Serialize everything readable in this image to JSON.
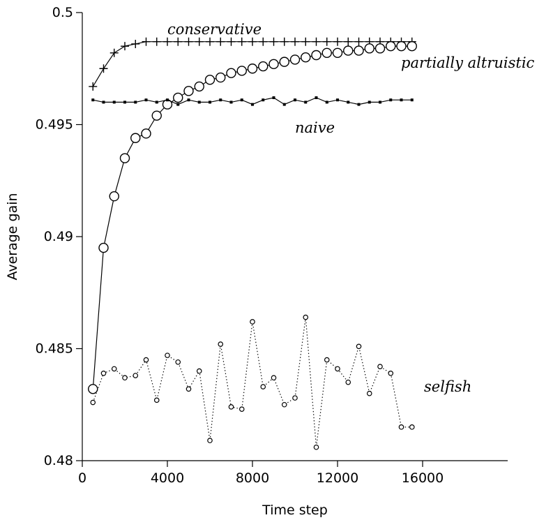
{
  "chart_data": {
    "type": "line",
    "xlabel": "Time step",
    "ylabel": "Average gain",
    "xlim": [
      0,
      20000
    ],
    "ylim": [
      0.48,
      0.5
    ],
    "x_ticks": [
      0,
      4000,
      8000,
      12000,
      16000
    ],
    "x_tick_labels": [
      "0",
      "4000",
      "8000",
      "12000",
      "16000"
    ],
    "y_ticks": [
      0.48,
      0.485,
      0.49,
      0.495,
      0.5
    ],
    "y_tick_labels": [
      "0.48",
      "0.485",
      "0.49",
      "0.495",
      "0.5"
    ],
    "grid": false,
    "legend": "none",
    "series": [
      {
        "name": "conservative",
        "marker": "plus",
        "line": "solid",
        "x": [
          500,
          1000,
          1500,
          2000,
          2500,
          3000,
          3500,
          4000,
          4500,
          5000,
          5500,
          6000,
          6500,
          7000,
          7500,
          8000,
          8500,
          9000,
          9500,
          10000,
          10500,
          11000,
          11500,
          12000,
          12500,
          13000,
          13500,
          14000,
          14500,
          15000,
          15500
        ],
        "y": [
          0.4967,
          0.4975,
          0.4982,
          0.4985,
          0.4986,
          0.4987,
          0.4987,
          0.4987,
          0.4987,
          0.4987,
          0.4987,
          0.4987,
          0.4987,
          0.4987,
          0.4987,
          0.4987,
          0.4987,
          0.4987,
          0.4987,
          0.4987,
          0.4987,
          0.4987,
          0.4987,
          0.4987,
          0.4987,
          0.4987,
          0.4987,
          0.4987,
          0.4987,
          0.4987,
          0.4987
        ]
      },
      {
        "name": "partially altruistic",
        "marker": "circle",
        "line": "solid",
        "x": [
          500,
          1000,
          1500,
          2000,
          2500,
          3000,
          3500,
          4000,
          4500,
          5000,
          5500,
          6000,
          6500,
          7000,
          7500,
          8000,
          8500,
          9000,
          9500,
          10000,
          10500,
          11000,
          11500,
          12000,
          12500,
          13000,
          13500,
          14000,
          14500,
          15000,
          15500
        ],
        "y": [
          0.4832,
          0.4895,
          0.4918,
          0.4935,
          0.4944,
          0.4946,
          0.4954,
          0.4959,
          0.4962,
          0.4965,
          0.4967,
          0.497,
          0.4971,
          0.4973,
          0.4974,
          0.4975,
          0.4976,
          0.4977,
          0.4978,
          0.4979,
          0.498,
          0.4981,
          0.4982,
          0.4982,
          0.4983,
          0.4983,
          0.4984,
          0.4984,
          0.4985,
          0.4985,
          0.4985
        ]
      },
      {
        "name": "naive",
        "marker": "dot",
        "line": "solid",
        "x": [
          500,
          1000,
          1500,
          2000,
          2500,
          3000,
          3500,
          4000,
          4500,
          5000,
          5500,
          6000,
          6500,
          7000,
          7500,
          8000,
          8500,
          9000,
          9500,
          10000,
          10500,
          11000,
          11500,
          12000,
          12500,
          13000,
          13500,
          14000,
          14500,
          15000,
          15500
        ],
        "y": [
          0.4961,
          0.496,
          0.496,
          0.496,
          0.496,
          0.4961,
          0.496,
          0.4961,
          0.4959,
          0.4961,
          0.496,
          0.496,
          0.4961,
          0.496,
          0.4961,
          0.4959,
          0.4961,
          0.4962,
          0.4959,
          0.4961,
          0.496,
          0.4962,
          0.496,
          0.4961,
          0.496,
          0.4959,
          0.496,
          0.496,
          0.4961,
          0.4961,
          0.4961
        ]
      },
      {
        "name": "selfish",
        "marker": "small-circle",
        "line": "dotted",
        "x": [
          500,
          1000,
          1500,
          2000,
          2500,
          3000,
          3500,
          4000,
          4500,
          5000,
          5500,
          6000,
          6500,
          7000,
          7500,
          8000,
          8500,
          9000,
          9500,
          10000,
          10500,
          11000,
          11500,
          12000,
          12500,
          13000,
          13500,
          14000,
          14500,
          15000,
          15500
        ],
        "y": [
          0.4826,
          0.4839,
          0.4841,
          0.4837,
          0.4838,
          0.4845,
          0.4827,
          0.4847,
          0.4844,
          0.4832,
          0.484,
          0.4809,
          0.4852,
          0.4824,
          0.4823,
          0.4862,
          0.4833,
          0.4837,
          0.4825,
          0.4828,
          0.4864,
          0.4806,
          0.4845,
          0.4841,
          0.4835,
          0.4851,
          0.483,
          0.4842,
          0.4839,
          0.4815,
          0.4815
        ]
      }
    ],
    "annotations": [
      {
        "text": "conservative",
        "series": "conservative"
      },
      {
        "text": "partially altruistic",
        "series": "partially altruistic"
      },
      {
        "text": "naive",
        "series": "naive"
      },
      {
        "text": "selfish",
        "series": "selfish"
      }
    ]
  }
}
